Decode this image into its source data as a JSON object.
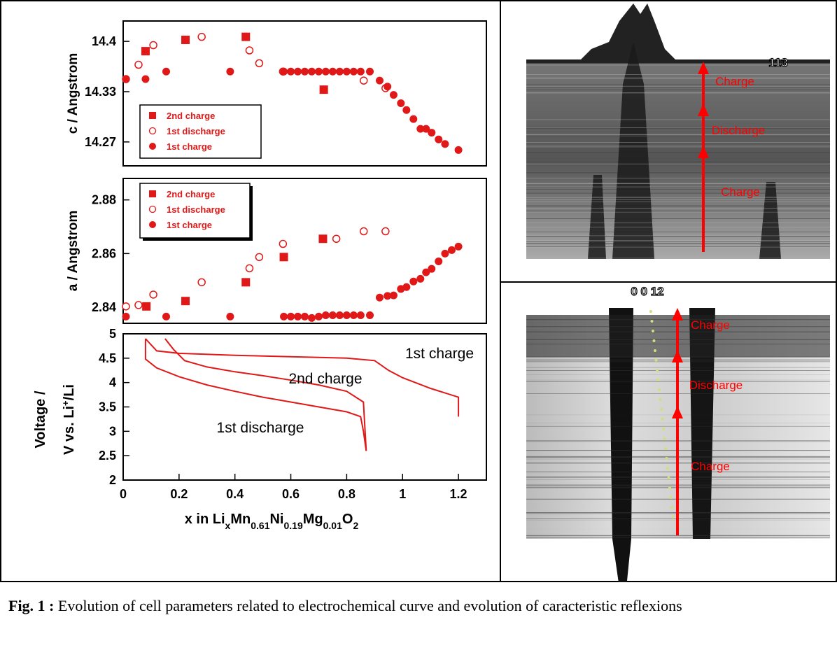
{
  "chart_data": [
    {
      "type": "scatter",
      "y_label": "c / Angstrom",
      "xlim": [
        0,
        1.3
      ],
      "ylim": [
        14.235,
        14.427
      ],
      "yticks": [
        {
          "value": 14.2667,
          "label": "14.27"
        },
        {
          "value": 14.3333,
          "label": "14.33"
        },
        {
          "value": 14.4,
          "label": "14.4"
        }
      ],
      "series": [
        {
          "name": "2nd charge",
          "color": "#e01818",
          "marker": "square",
          "x": [
            0.08,
            0.223,
            0.439,
            0.718
          ],
          "values": [
            14.387,
            14.402,
            14.406,
            14.336
          ]
        },
        {
          "name": "1st discharge",
          "color": "#e01818",
          "marker": "open-circle",
          "x": [
            0.01,
            0.055,
            0.108,
            0.281,
            0.452,
            0.487,
            0.572,
            0.861,
            0.939
          ],
          "values": [
            14.35,
            14.369,
            14.395,
            14.406,
            14.388,
            14.371,
            14.36,
            14.348,
            14.338
          ]
        },
        {
          "name": "1st charge",
          "color": "#e01818",
          "marker": "circle",
          "x": [
            0.01,
            0.08,
            0.154,
            0.383,
            0.575,
            0.6,
            0.625,
            0.65,
            0.675,
            0.7,
            0.725,
            0.75,
            0.775,
            0.8,
            0.825,
            0.85,
            0.883,
            0.918,
            0.946,
            0.968,
            0.994,
            1.014,
            1.039,
            1.064,
            1.084,
            1.104,
            1.129,
            1.152,
            1.2
          ],
          "values": [
            14.35,
            14.35,
            14.36,
            14.36,
            14.36,
            14.36,
            14.36,
            14.36,
            14.36,
            14.36,
            14.36,
            14.36,
            14.36,
            14.36,
            14.36,
            14.36,
            14.36,
            14.348,
            14.34,
            14.329,
            14.318,
            14.309,
            14.297,
            14.284,
            14.284,
            14.279,
            14.27,
            14.264,
            14.256
          ]
        }
      ]
    },
    {
      "type": "scatter",
      "y_label": "a / Angstrom",
      "xlim": [
        0,
        1.3
      ],
      "ylim": [
        2.834,
        2.888
      ],
      "yticks": [
        2.84,
        2.86,
        2.88
      ],
      "series": [
        {
          "name": "2nd charge",
          "color": "#e01818",
          "marker": "square",
          "x": [
            0.083,
            0.223,
            0.439,
            0.575,
            0.715
          ],
          "values": [
            2.8403,
            2.8423,
            2.8493,
            2.8587,
            2.8655
          ]
        },
        {
          "name": "1st discharge",
          "color": "#e01818",
          "marker": "open-circle",
          "x": [
            0.01,
            0.055,
            0.108,
            0.281,
            0.452,
            0.487,
            0.572,
            0.763,
            0.861,
            0.939
          ],
          "values": [
            2.8403,
            2.8408,
            2.8447,
            2.8493,
            2.8545,
            2.8587,
            2.8636,
            2.8655,
            2.8683,
            2.8683
          ]
        },
        {
          "name": "1st charge",
          "color": "#e01818",
          "marker": "circle",
          "x": [
            0.01,
            0.154,
            0.383,
            0.575,
            0.6,
            0.625,
            0.65,
            0.675,
            0.7,
            0.725,
            0.75,
            0.775,
            0.8,
            0.825,
            0.85,
            0.883,
            0.918,
            0.946,
            0.968,
            0.994,
            1.014,
            1.039,
            1.064,
            1.084,
            1.104,
            1.129,
            1.152,
            1.176,
            1.2
          ],
          "values": [
            2.8365,
            2.8365,
            2.8365,
            2.8365,
            2.8365,
            2.8365,
            2.8365,
            2.836,
            2.8365,
            2.837,
            2.837,
            2.837,
            2.837,
            2.837,
            2.837,
            2.837,
            2.8436,
            2.8442,
            2.8444,
            2.8468,
            2.8475,
            2.8496,
            2.8506,
            2.853,
            2.8543,
            2.8571,
            2.86,
            2.8613,
            2.8626
          ]
        }
      ]
    },
    {
      "type": "line",
      "y_label_lines": [
        [
          "Voltage /"
        ],
        [
          "V vs. Li",
          "+",
          "/Li"
        ]
      ],
      "x_label": [
        "x in Li",
        "x",
        "Mn",
        "0.61",
        "Ni",
        "0.19",
        "Mg",
        "0.01",
        "O",
        "2"
      ],
      "xlim": [
        0,
        1.3
      ],
      "xticks": [
        0,
        0.2,
        0.4,
        0.6,
        0.8,
        1,
        1.2
      ],
      "ylim": [
        2,
        5
      ],
      "yticks": [
        2,
        2.5,
        3,
        3.5,
        4,
        4.5,
        5
      ],
      "annotations": [
        "1st charge",
        "2nd charge",
        "1st discharge"
      ],
      "series": [
        {
          "color": "#e01818",
          "x": [
            1.2,
            1.2,
            1.1,
            1.0,
            0.95,
            0.9,
            0.8,
            0.6,
            0.4,
            0.2,
            0.12,
            0.08
          ],
          "values": [
            3.3,
            3.7,
            3.88,
            4.1,
            4.25,
            4.45,
            4.5,
            4.53,
            4.56,
            4.6,
            4.65,
            4.9
          ]
        },
        {
          "color": "#e01818",
          "x": [
            0.08,
            0.08,
            0.12,
            0.2,
            0.3,
            0.4,
            0.5,
            0.6,
            0.7,
            0.8,
            0.85,
            0.86,
            0.87
          ],
          "values": [
            4.9,
            4.48,
            4.3,
            4.12,
            3.95,
            3.82,
            3.7,
            3.6,
            3.5,
            3.4,
            3.3,
            3.0,
            2.6
          ]
        },
        {
          "color": "#e01818",
          "x": [
            0.87,
            0.86,
            0.8,
            0.7,
            0.6,
            0.5,
            0.4,
            0.3,
            0.22,
            0.18,
            0.15
          ],
          "values": [
            2.6,
            3.6,
            3.82,
            3.95,
            4.05,
            4.14,
            4.22,
            4.32,
            4.45,
            4.68,
            4.9
          ]
        }
      ]
    }
  ],
  "panels": [
    {
      "label": "113",
      "arrows": [
        "Charge",
        "Discharge",
        "Charge"
      ]
    },
    {
      "label": "0 0 12",
      "arrows": [
        "Charge",
        "Discharge",
        "Charge"
      ]
    }
  ],
  "caption": {
    "prefix": "Fig. 1 :",
    "text": "Evolution of cell parameters related to electrochemical curve and evolution of caracteristic reflexions"
  }
}
